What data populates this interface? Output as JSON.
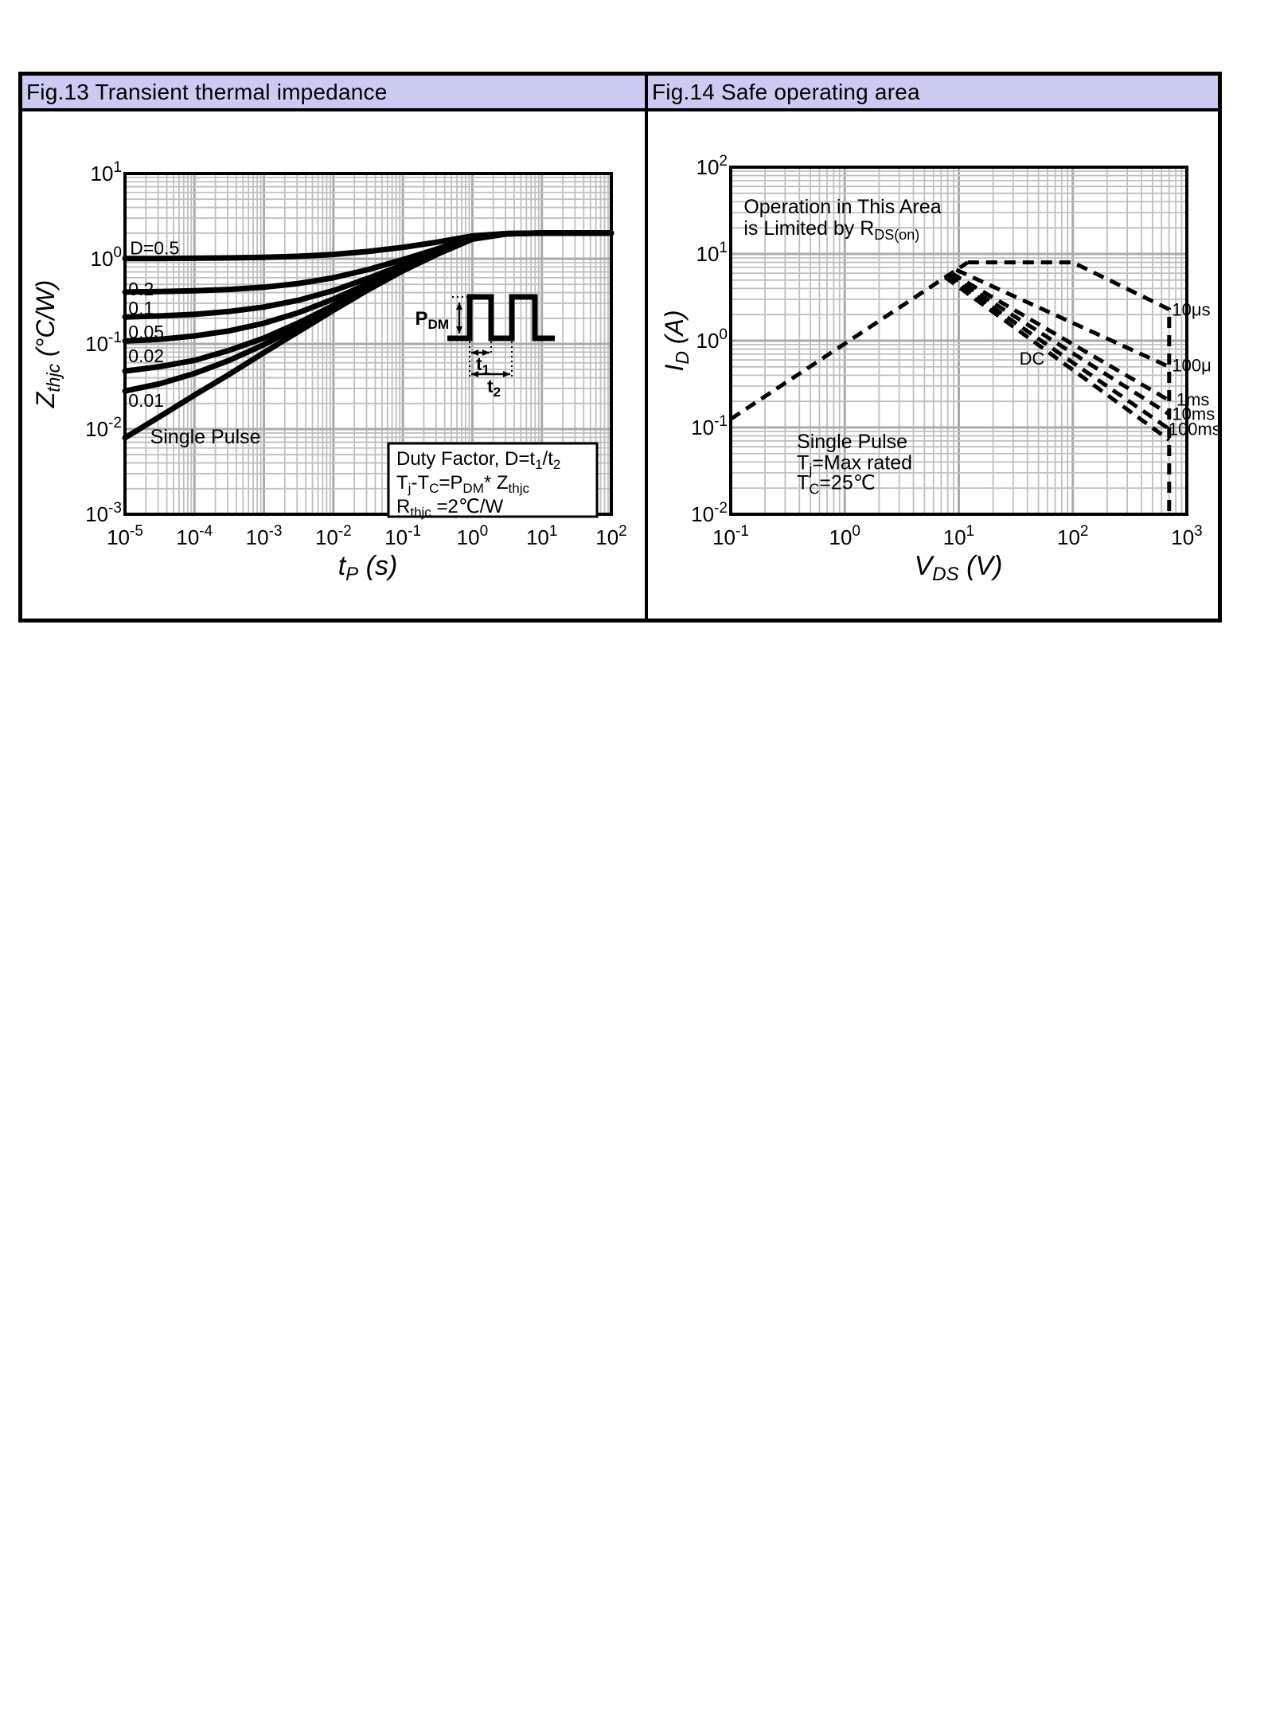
{
  "panels": [
    {
      "id": "fig13",
      "title": "Fig.13 Transient thermal impedance",
      "header_bg": "#cbcbf2"
    },
    {
      "id": "fig14",
      "title": "Fig.14 Safe operating area",
      "header_bg": "#cbcbf2"
    }
  ],
  "chart_data": [
    {
      "id": "fig13",
      "type": "line",
      "title": "Fig.13 Transient thermal impedance",
      "xlabel": "t_{P} (s)",
      "ylabel": "Z_{thjc} (°C/W)",
      "x_scale": "log",
      "y_scale": "log",
      "xlim": [
        1e-05,
        100
      ],
      "ylim": [
        0.001,
        10
      ],
      "xexp": [
        -5,
        2
      ],
      "yexp": [
        -3,
        1
      ],
      "grid": true,
      "x_ticks": [
        {
          "v": 1e-05,
          "label": "10^{-5}"
        },
        {
          "v": 0.0001,
          "label": "10^{-4}"
        },
        {
          "v": 0.001,
          "label": "10^{-3}"
        },
        {
          "v": 0.01,
          "label": "10^{-2}"
        },
        {
          "v": 0.1,
          "label": "10^{-1}"
        },
        {
          "v": 1,
          "label": "10^{0}"
        },
        {
          "v": 10,
          "label": "10^{1}"
        },
        {
          "v": 100,
          "label": "10^{2}"
        }
      ],
      "y_ticks": [
        {
          "v": 10,
          "label": "10^{1}"
        },
        {
          "v": 1,
          "label": "10^{0}"
        },
        {
          "v": 0.1,
          "label": "10^{-1}"
        },
        {
          "v": 0.01,
          "label": "10^{-2}"
        },
        {
          "v": 0.001,
          "label": "10^{-3}"
        }
      ],
      "series": [
        {
          "name": "D=0.5",
          "style": "solid",
          "x": [
            1e-05,
            3.16e-05,
            0.0001,
            0.000316,
            0.001,
            0.00316,
            0.01,
            0.0316,
            0.1,
            0.316,
            1,
            3.16,
            10,
            100
          ],
          "y": [
            1.004,
            1.007,
            1.013,
            1.022,
            1.039,
            1.07,
            1.124,
            1.216,
            1.361,
            1.567,
            1.849,
            1.98,
            1.999,
            2.0
          ]
        },
        {
          "name": "D=0.2",
          "style": "solid",
          "x": [
            1e-05,
            3.16e-05,
            0.0001,
            0.000316,
            0.001,
            0.00316,
            0.01,
            0.0316,
            0.1,
            0.316,
            1,
            3.16,
            10,
            100
          ],
          "y": [
            0.406,
            0.411,
            0.42,
            0.436,
            0.463,
            0.512,
            0.598,
            0.746,
            0.977,
            1.306,
            1.758,
            1.968,
            1.999,
            2.0
          ]
        },
        {
          "name": "D=0.1",
          "style": "solid",
          "x": [
            1e-05,
            3.16e-05,
            0.0001,
            0.000316,
            0.001,
            0.00316,
            0.01,
            0.0316,
            0.1,
            0.316,
            1,
            3.16,
            10,
            100
          ],
          "y": [
            0.207,
            0.213,
            0.222,
            0.24,
            0.271,
            0.326,
            0.423,
            0.589,
            0.849,
            1.22,
            1.727,
            1.964,
            1.999,
            2.0
          ]
        },
        {
          "name": "D=0.05",
          "style": "solid",
          "x": [
            1e-05,
            3.16e-05,
            0.0001,
            0.000316,
            0.001,
            0.00316,
            0.01,
            0.0316,
            0.1,
            0.316,
            1,
            3.16,
            10,
            100
          ],
          "y": [
            0.108,
            0.113,
            0.124,
            0.142,
            0.175,
            0.233,
            0.336,
            0.51,
            0.785,
            1.176,
            1.712,
            1.962,
            1.999,
            2.0
          ]
        },
        {
          "name": "D=0.02",
          "style": "solid",
          "x": [
            1e-05,
            3.16e-05,
            0.0001,
            0.000316,
            0.001,
            0.00316,
            0.01,
            0.0316,
            0.1,
            0.316,
            1,
            3.16,
            10,
            100
          ],
          "y": [
            0.048,
            0.054,
            0.064,
            0.084,
            0.117,
            0.177,
            0.283,
            0.463,
            0.747,
            1.15,
            1.703,
            1.961,
            1.999,
            2.0
          ]
        },
        {
          "name": "D=0.01",
          "style": "solid",
          "x": [
            1e-05,
            3.16e-05,
            0.0001,
            0.000316,
            0.001,
            0.00316,
            0.01,
            0.0316,
            0.1,
            0.316,
            1,
            3.16,
            10,
            100
          ],
          "y": [
            0.028,
            0.034,
            0.045,
            0.064,
            0.098,
            0.159,
            0.266,
            0.448,
            0.734,
            1.142,
            1.7,
            1.96,
            1.999,
            2.0
          ]
        },
        {
          "name": "Single Pulse",
          "style": "solid",
          "x": [
            1e-05,
            3.16e-05,
            0.0001,
            0.000316,
            0.001,
            0.00316,
            0.01,
            0.0316,
            0.1,
            0.316,
            1,
            3.16,
            10,
            100
          ],
          "y": [
            0.0079,
            0.014,
            0.025,
            0.044,
            0.079,
            0.14,
            0.248,
            0.432,
            0.721,
            1.133,
            1.697,
            1.96,
            1.999,
            2.0
          ]
        }
      ],
      "annotations": [
        {
          "text": "D=0.5",
          "x": 1.18e-05,
          "y": 1.12,
          "size": 23
        },
        {
          "text": "0.2",
          "x": 1.12e-05,
          "y": 0.372,
          "size": 23
        },
        {
          "text": "0.1",
          "x": 1.12e-05,
          "y": 0.222,
          "size": 23
        },
        {
          "text": "0.05",
          "x": 1.12e-05,
          "y": 0.116,
          "size": 23
        },
        {
          "text": "0.02",
          "x": 1.12e-05,
          "y": 0.061,
          "size": 23
        },
        {
          "text": "0.01",
          "x": 1.12e-05,
          "y": 0.0183,
          "size": 23
        },
        {
          "text": "Single Pulse",
          "x": 2.3e-05,
          "y": 0.0068,
          "size": 25
        }
      ],
      "note_box": {
        "lines": [
          "Duty Factor, D=t_{1}/t_{2}",
          "T_{j}-T_{C}=P_{DM}* Z_{thjc}",
          "R_{thjc} =2℃/W"
        ]
      },
      "inset": {
        "pdm": "P_{DM}",
        "t1": "t_{1}",
        "t2": "t_{2}"
      }
    },
    {
      "id": "fig14",
      "type": "line",
      "title": "Fig.14 Safe operating area",
      "xlabel": "V_{DS} (V)",
      "ylabel": "I_{D} (A)",
      "x_scale": "log",
      "y_scale": "log",
      "xlim": [
        0.1,
        1000
      ],
      "ylim": [
        0.01,
        100
      ],
      "xexp": [
        -1,
        3
      ],
      "yexp": [
        -2,
        2
      ],
      "grid": true,
      "x_ticks": [
        {
          "v": 0.1,
          "label": "10^{-1}"
        },
        {
          "v": 1,
          "label": "10^{0}"
        },
        {
          "v": 10,
          "label": "10^{1}"
        },
        {
          "v": 100,
          "label": "10^{2}"
        },
        {
          "v": 1000,
          "label": "10^{3}"
        }
      ],
      "y_ticks": [
        {
          "v": 100,
          "label": "10^{2}"
        },
        {
          "v": 10,
          "label": "10^{1}"
        },
        {
          "v": 1,
          "label": "10^{0}"
        },
        {
          "v": 0.1,
          "label": "10^{-1}"
        },
        {
          "v": 0.01,
          "label": "10^{-2}"
        }
      ],
      "series": [
        {
          "name": "RDS(on) limit",
          "style": "dashed",
          "x": [
            0.1,
            12
          ],
          "y": [
            0.125,
            8.0
          ]
        },
        {
          "name": "10us",
          "style": "dashed",
          "x": [
            12,
            100,
            700,
            700
          ],
          "y": [
            8.0,
            8.0,
            2.3,
            0.0105
          ]
        },
        {
          "name": "100us",
          "style": "dashed",
          "x": [
            9.5,
            700
          ],
          "y": [
            6.55,
            0.5
          ]
        },
        {
          "name": "1ms",
          "style": "dashed",
          "x": [
            8.6,
            700
          ],
          "y": [
            6.0,
            0.205
          ]
        },
        {
          "name": "10ms",
          "style": "dashed",
          "x": [
            8.2,
            700
          ],
          "y": [
            5.75,
            0.142
          ]
        },
        {
          "name": "100ms",
          "style": "dashed",
          "x": [
            7.9,
            700
          ],
          "y": [
            5.6,
            0.096
          ]
        },
        {
          "name": "DC",
          "style": "dashed",
          "x": [
            7.6,
            700
          ],
          "y": [
            5.4,
            0.072
          ]
        }
      ],
      "annotations": [
        {
          "text": "Operation in This Area",
          "x": 0.13,
          "y": 29.4,
          "size": 25
        },
        {
          "text": "is Limited by R_{DS(on)}",
          "x": 0.13,
          "y": 16.6,
          "size": 25
        },
        {
          "text": "Single Pulse",
          "x": 0.38,
          "y": 0.058,
          "size": 25
        },
        {
          "text": "T_{j}=Max rated",
          "x": 0.38,
          "y": 0.033,
          "size": 25
        },
        {
          "text": "T_{C}=25℃",
          "x": 0.38,
          "y": 0.0195,
          "size": 25
        },
        {
          "text": "DC",
          "x": 34,
          "y": 0.53,
          "size": 22
        },
        {
          "text": "10μs",
          "x": 742,
          "y": 1.95,
          "size": 22
        },
        {
          "text": "100μ",
          "x": 742,
          "y": 0.445,
          "size": 22
        },
        {
          "text": "1ms",
          "x": 810,
          "y": 0.178,
          "size": 22
        },
        {
          "text": "10ms",
          "x": 742,
          "y": 0.122,
          "size": 22
        },
        {
          "text": "100ms",
          "x": 688,
          "y": 0.082,
          "size": 22
        }
      ]
    }
  ]
}
